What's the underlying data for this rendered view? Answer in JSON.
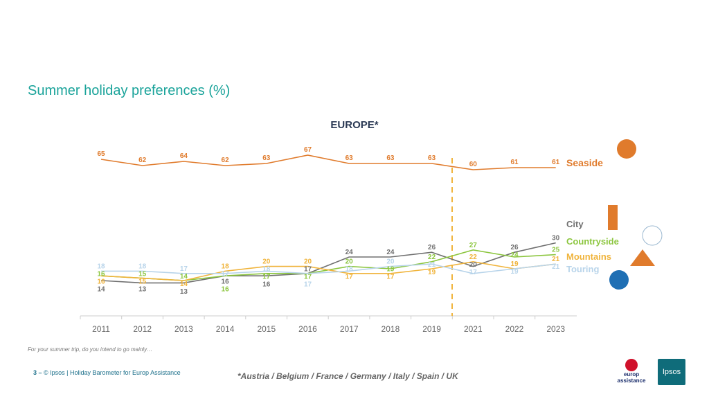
{
  "title": "Summer holiday preferences (%)",
  "footer": {
    "page": "3 –",
    "source": "© Ipsos | Holiday Barometer for Europ Assistance",
    "question": "For your summer trip, do you intend to go mainly…",
    "countries": "*Austria / Belgium / France / Germany / Italy / Spain / UK"
  },
  "logos": {
    "europ": "europ assistance",
    "ipsos": "Ipsos"
  },
  "chart_data": {
    "type": "line",
    "title": "EUROPE*",
    "categories": [
      "2011",
      "2012",
      "2013",
      "2014",
      "2015",
      "2016",
      "2017",
      "2018",
      "2019",
      "2021",
      "2022",
      "2023"
    ],
    "series": [
      {
        "name": "Seaside",
        "color": "#e07b2c",
        "values": [
          65,
          62,
          64,
          62,
          63,
          67,
          63,
          63,
          63,
          60,
          61,
          61
        ]
      },
      {
        "name": "City",
        "color": "#707070",
        "values": [
          14,
          13,
          13,
          16,
          16,
          17,
          24,
          24,
          26,
          20,
          26,
          30
        ]
      },
      {
        "name": "Countryside",
        "color": "#8cc63f",
        "values": [
          16,
          15,
          14,
          16,
          17,
          17,
          20,
          19,
          22,
          27,
          24,
          25
        ]
      },
      {
        "name": "Mountains",
        "color": "#f0b43c",
        "values": [
          16,
          15,
          14,
          18,
          20,
          20,
          17,
          17,
          19,
          22,
          19,
          21
        ]
      },
      {
        "name": "Touring",
        "color": "#b8d4ea",
        "values": [
          18,
          18,
          17,
          17,
          18,
          17,
          18,
          20,
          21,
          17,
          19,
          21
        ]
      }
    ],
    "annotation": "dashed line between 2019 and 2021",
    "grid": false
  }
}
